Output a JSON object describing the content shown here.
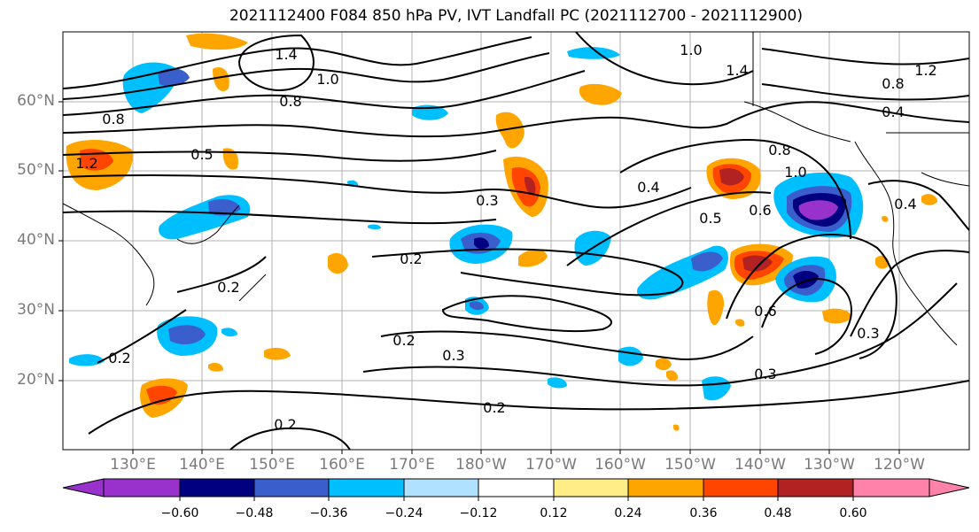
{
  "title": "2021112400 F084 850 hPa PV, IVT Landfall PC (2021112700 - 2021112900)",
  "lat_labels": [
    "60°N",
    "50°N",
    "40°N",
    "30°N",
    "20°N"
  ],
  "lon_labels": [
    "130°E",
    "140°E",
    "150°E",
    "160°E",
    "170°E",
    "180°W",
    "170°W",
    "160°W",
    "150°W",
    "140°W",
    "130°W",
    "120°W"
  ],
  "colorbar": {
    "ticks": [
      "−0.60",
      "−0.48",
      "−0.36",
      "−0.24",
      "−0.12",
      "0.12",
      "0.24",
      "0.36",
      "0.48",
      "0.60"
    ],
    "colors": [
      "#9932cc",
      "#000080",
      "#3a5fcd",
      "#00bfff",
      "#b0e2ff",
      "#ffffff",
      "#ffee88",
      "#ffa500",
      "#ff4500",
      "#b22222",
      "#ff82ab"
    ]
  },
  "contour_labels": [
    "1.4",
    "1.0",
    "1.0",
    "0.8",
    "0.8",
    "1.2",
    "0.5",
    "1.4",
    "1.2",
    "0.8",
    "0.4",
    "0.8",
    "1.0",
    "0.4",
    "0.5",
    "0.6",
    "0.3",
    "0.2",
    "0.2",
    "0.2",
    "0.2",
    "0.3",
    "0.6",
    "0.3",
    "0.3",
    "0.2",
    "0.2",
    "0.4"
  ]
}
